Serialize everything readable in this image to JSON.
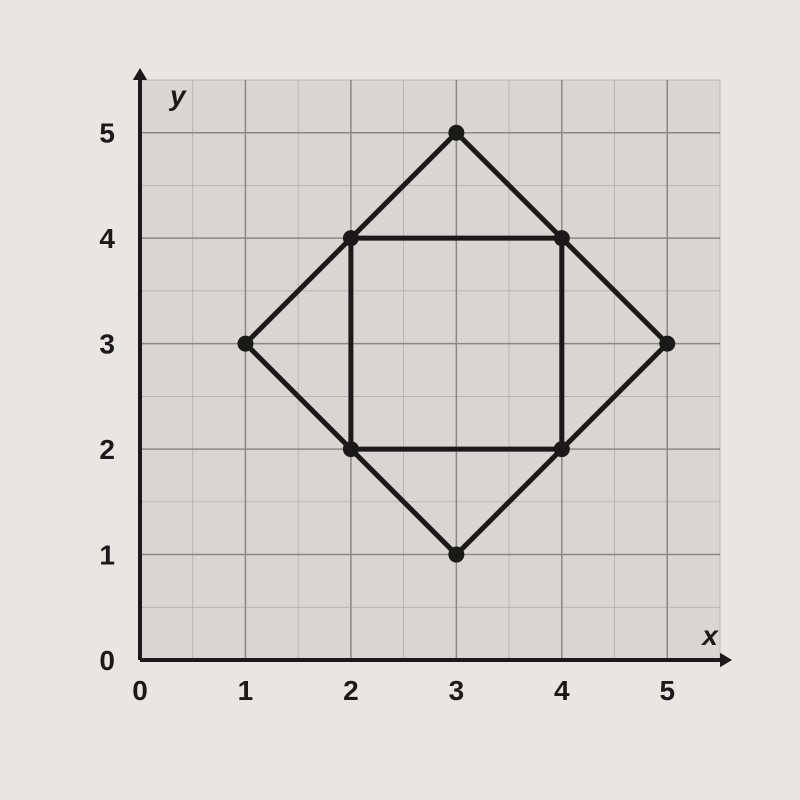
{
  "chart": {
    "type": "coordinate-grid",
    "background_color": "#e8e6e2",
    "grid_background": "#d8d6d2",
    "xlim": [
      0,
      5.5
    ],
    "ylim": [
      0,
      5.5
    ],
    "xtick_step": 1,
    "ytick_step": 1,
    "minor_tick_step": 0.5,
    "xlabel": "x",
    "ylabel": "y",
    "axis_color": "#1a1a1a",
    "major_grid_color": "#888888",
    "minor_grid_color": "#aaaaaa",
    "axis_stroke_width": 4,
    "major_grid_stroke_width": 1.5,
    "minor_grid_stroke_width": 0.7,
    "axis_label_fontsize": 28,
    "tick_label_fontsize": 28,
    "axis_label_fontweight": "bold",
    "tick_label_fontweight": "bold",
    "xticks": [
      0,
      1,
      2,
      3,
      4,
      5
    ],
    "yticks": [
      0,
      1,
      2,
      3,
      4,
      5
    ],
    "shapes": [
      {
        "name": "outer-diamond",
        "points": [
          [
            3,
            5
          ],
          [
            5,
            3
          ],
          [
            3,
            1
          ],
          [
            1,
            3
          ]
        ],
        "stroke": "#1a1a1a",
        "stroke_width": 5,
        "fill": "none"
      },
      {
        "name": "inner-square",
        "points": [
          [
            2,
            4
          ],
          [
            4,
            4
          ],
          [
            4,
            2
          ],
          [
            2,
            2
          ]
        ],
        "stroke": "#1a1a1a",
        "stroke_width": 5,
        "fill": "none"
      }
    ],
    "points": [
      {
        "x": 3,
        "y": 5
      },
      {
        "x": 5,
        "y": 3
      },
      {
        "x": 3,
        "y": 1
      },
      {
        "x": 1,
        "y": 3
      },
      {
        "x": 2,
        "y": 4
      },
      {
        "x": 4,
        "y": 4
      },
      {
        "x": 4,
        "y": 2
      },
      {
        "x": 2,
        "y": 2
      }
    ],
    "point_radius": 8,
    "point_color": "#1a1a1a",
    "arrow_size": 12
  }
}
